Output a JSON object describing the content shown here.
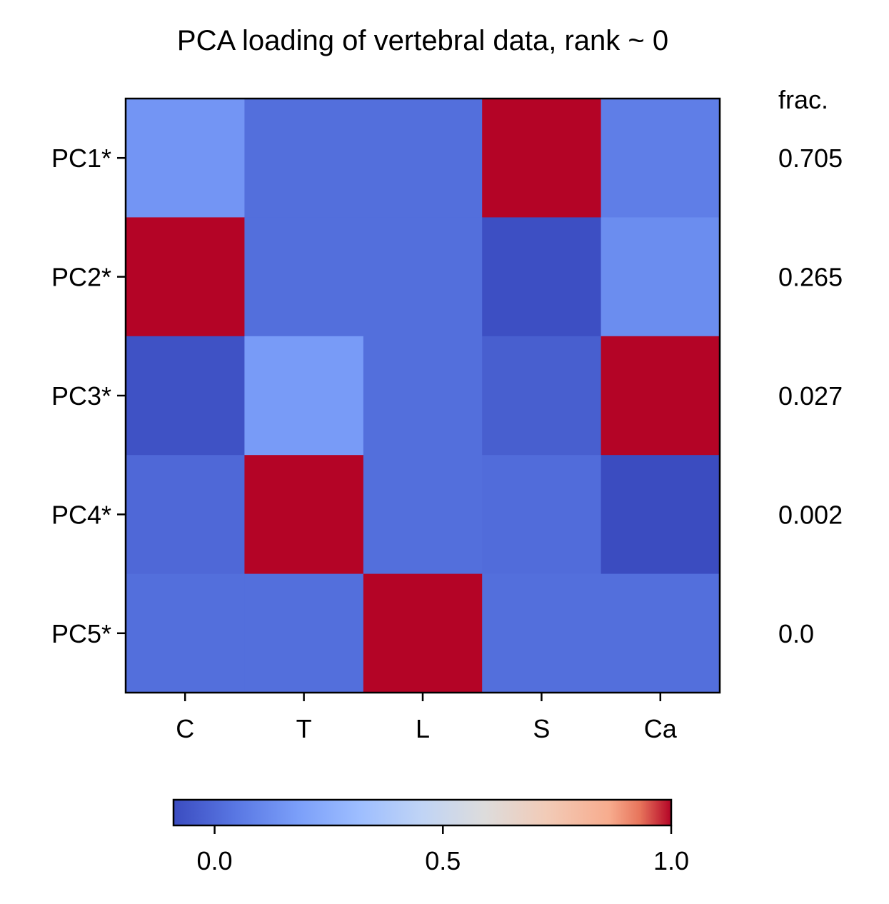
{
  "chart_data": {
    "type": "heatmap",
    "title": "PCA loading of vertebral data, rank ~ 0",
    "x_categories": [
      "C",
      "T",
      "L",
      "S",
      "Ca"
    ],
    "y_categories": [
      "PC1*",
      "PC2*",
      "PC3*",
      "PC4*",
      "PC5*"
    ],
    "values": [
      [
        0.15,
        0.02,
        0.02,
        1.0,
        0.07
      ],
      [
        1.0,
        0.02,
        0.02,
        -0.08,
        0.12
      ],
      [
        -0.07,
        0.17,
        0.02,
        -0.03,
        1.0
      ],
      [
        0.0,
        1.0,
        0.02,
        0.01,
        -0.09
      ],
      [
        0.02,
        0.02,
        1.0,
        0.02,
        0.02
      ]
    ],
    "side_label_title": "frac.",
    "side_labels": [
      "0.705",
      "0.265",
      "0.027",
      "0.002",
      "0.0"
    ],
    "colorbar": {
      "colormap": "coolwarm",
      "range": [
        -0.09,
        1.0
      ],
      "ticks": [
        0.0,
        0.5,
        1.0
      ],
      "tick_labels": [
        "0.0",
        "0.5",
        "1.0"
      ],
      "orientation": "horizontal",
      "placement": "bottom"
    }
  }
}
